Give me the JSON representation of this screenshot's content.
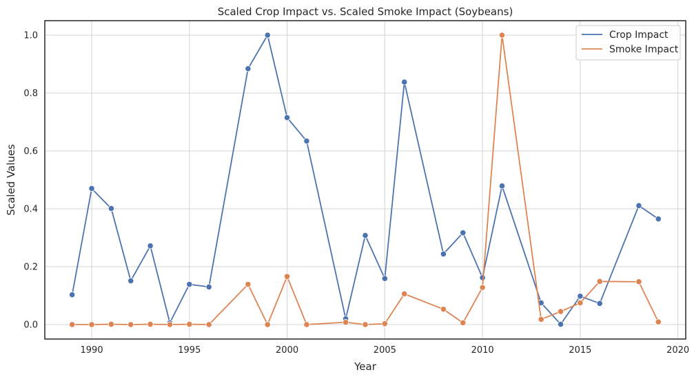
{
  "chart_data": {
    "type": "line",
    "title": "Scaled Crop Impact vs. Scaled Smoke Impact (Soybeans)",
    "xlabel": "Year",
    "ylabel": "Scaled Values",
    "xlim": [
      1987.6,
      2020.4
    ],
    "ylim": [
      -0.05,
      1.05
    ],
    "xticks": [
      1990,
      1995,
      2000,
      2005,
      2010,
      2015,
      2020
    ],
    "xtick_labels": [
      "1990",
      "1995",
      "2000",
      "2005",
      "2010",
      "2015",
      "2020"
    ],
    "yticks": [
      0.0,
      0.2,
      0.4,
      0.6,
      0.8,
      1.0
    ],
    "ytick_labels": [
      "0.0",
      "0.2",
      "0.4",
      "0.6",
      "0.8",
      "1.0"
    ],
    "grid": true,
    "legend_position": "top-right",
    "series": [
      {
        "name": "Crop Impact",
        "color": "#4c72b0",
        "marker": "circle",
        "x": [
          1989,
          1990,
          1991,
          1992,
          1993,
          1994,
          1995,
          1996,
          1998,
          1999,
          2000,
          2001,
          2003,
          2004,
          2005,
          2006,
          2008,
          2009,
          2010,
          2011,
          2013,
          2014,
          2015,
          2016,
          2018,
          2019
        ],
        "y": [
          0.103,
          0.47,
          0.401,
          0.151,
          0.272,
          0.006,
          0.139,
          0.13,
          0.884,
          1.0,
          0.715,
          0.634,
          0.02,
          0.308,
          0.159,
          0.838,
          0.244,
          0.317,
          0.162,
          0.479,
          0.075,
          0.001,
          0.098,
          0.073,
          0.411,
          0.365
        ]
      },
      {
        "name": "Smoke Impact",
        "color": "#dd8452",
        "marker": "circle",
        "x": [
          1989,
          1990,
          1991,
          1992,
          1993,
          1994,
          1995,
          1996,
          1998,
          1999,
          2000,
          2001,
          2003,
          2004,
          2005,
          2006,
          2008,
          2009,
          2010,
          2011,
          2013,
          2014,
          2015,
          2016,
          2018,
          2019
        ],
        "y": [
          0.0,
          0.0,
          0.001,
          0.0,
          0.001,
          0.0,
          0.001,
          0.0,
          0.139,
          0.0,
          0.166,
          0.0,
          0.008,
          0.0,
          0.003,
          0.106,
          0.053,
          0.006,
          0.128,
          1.0,
          0.018,
          0.045,
          0.075,
          0.149,
          0.148,
          0.009
        ]
      }
    ]
  }
}
